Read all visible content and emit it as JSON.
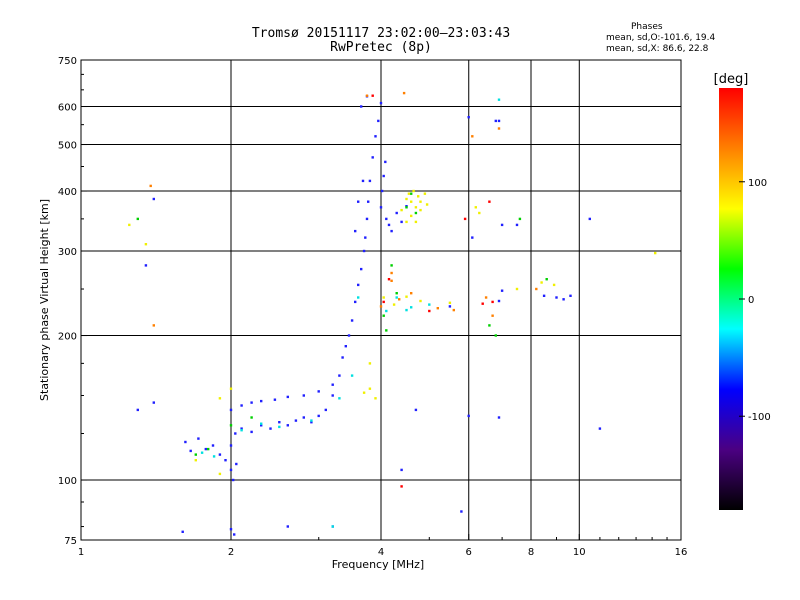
{
  "chart_data": {
    "type": "scatter",
    "title": "Tromsø 20151117 23:02:00–23:03:43",
    "subtitle": "RwPretec (8p)",
    "xlabel": "Frequency [MHz]",
    "ylabel": "Stationary phase Virtual Height [km]",
    "x_scale": "log",
    "y_scale": "log",
    "xlim": [
      1,
      16
    ],
    "ylim": [
      75,
      750
    ],
    "x_ticks": [
      1,
      2,
      4,
      6,
      8,
      10,
      16
    ],
    "x_tick_labels": [
      "1",
      "2",
      "4",
      "6",
      "8",
      "10",
      "16"
    ],
    "x_gridlines": [
      2,
      4,
      6,
      8,
      10
    ],
    "y_ticks": [
      75,
      100,
      200,
      300,
      400,
      500,
      600,
      750
    ],
    "y_tick_labels": [
      "75",
      "100",
      "200",
      "300",
      "400",
      "500",
      "600",
      "750"
    ],
    "y_gridlines": [
      100,
      200,
      300,
      400,
      500,
      600
    ],
    "grid": true,
    "phase_stats": {
      "title": "Phases",
      "o_line": "mean, sd,O:-101.6, 19.4",
      "x_line": "mean, sd,X:  86.6, 22.8"
    },
    "colorbar": {
      "label": "[deg]",
      "range": [
        -180,
        180
      ],
      "ticks": [
        100,
        0,
        -100
      ],
      "tick_labels": [
        "100",
        "0",
        "-100"
      ],
      "colors": [
        "#000000",
        "#4b0082",
        "#0000ff",
        "#00ffff",
        "#00ff00",
        "#ffff00",
        "#ff8000",
        "#ff0000"
      ]
    },
    "series": [
      {
        "phase_color": "#2020ff",
        "points": [
          [
            1.62,
            120
          ],
          [
            1.66,
            115
          ],
          [
            1.72,
            122
          ],
          [
            1.78,
            116
          ],
          [
            1.84,
            118
          ],
          [
            1.9,
            113
          ],
          [
            1.95,
            110
          ],
          [
            2.0,
            118
          ],
          [
            2.04,
            125
          ],
          [
            2.1,
            128
          ],
          [
            2.2,
            126
          ],
          [
            2.3,
            130
          ],
          [
            2.4,
            128
          ],
          [
            2.5,
            132
          ],
          [
            2.6,
            130
          ],
          [
            2.7,
            133
          ],
          [
            2.8,
            135
          ],
          [
            2.9,
            132
          ],
          [
            3.0,
            136
          ],
          [
            3.1,
            140
          ],
          [
            3.2,
            150
          ],
          [
            3.3,
            165
          ],
          [
            3.35,
            180
          ],
          [
            3.4,
            190
          ],
          [
            3.45,
            200
          ],
          [
            3.5,
            215
          ],
          [
            3.55,
            235
          ],
          [
            3.6,
            255
          ],
          [
            3.65,
            275
          ],
          [
            3.7,
            300
          ],
          [
            3.72,
            320
          ],
          [
            3.75,
            350
          ],
          [
            3.77,
            380
          ],
          [
            3.8,
            420
          ],
          [
            3.85,
            470
          ],
          [
            3.9,
            520
          ],
          [
            3.95,
            560
          ],
          [
            3.65,
            600
          ],
          [
            3.75,
            630
          ],
          [
            3.55,
            330
          ],
          [
            3.6,
            380
          ],
          [
            3.68,
            420
          ],
          [
            2.0,
            140
          ],
          [
            2.1,
            143
          ],
          [
            2.2,
            145
          ],
          [
            2.3,
            146
          ],
          [
            2.45,
            147
          ],
          [
            2.6,
            149
          ],
          [
            2.8,
            150
          ],
          [
            3.0,
            153
          ],
          [
            3.2,
            158
          ],
          [
            2.0,
            105
          ],
          [
            2.02,
            100
          ],
          [
            2.05,
            108
          ],
          [
            2.0,
            79
          ],
          [
            2.03,
            77
          ],
          [
            4.0,
            370
          ],
          [
            4.02,
            400
          ],
          [
            4.05,
            430
          ],
          [
            4.08,
            460
          ],
          [
            4.1,
            350
          ],
          [
            4.15,
            340
          ],
          [
            4.2,
            330
          ],
          [
            4.3,
            360
          ],
          [
            4.5,
            372
          ],
          [
            4.4,
            345
          ],
          [
            1.3,
            140
          ],
          [
            1.4,
            145
          ],
          [
            1.4,
            385
          ],
          [
            1.35,
            280
          ],
          [
            1.6,
            78
          ],
          [
            2.6,
            80
          ],
          [
            3.2,
            80
          ],
          [
            5.5,
            230
          ],
          [
            6.9,
            236
          ],
          [
            7.0,
            248
          ],
          [
            7.5,
            340
          ],
          [
            7.0,
            340
          ],
          [
            8.5,
            242
          ],
          [
            9.0,
            240
          ],
          [
            9.3,
            238
          ],
          [
            9.6,
            242
          ],
          [
            11.0,
            128
          ],
          [
            10.5,
            350
          ],
          [
            6.0,
            570
          ],
          [
            6.1,
            320
          ],
          [
            6.0,
            136
          ],
          [
            6.9,
            135
          ],
          [
            6.9,
            560
          ],
          [
            5.8,
            86
          ],
          [
            4.4,
            105
          ],
          [
            4.7,
            140
          ],
          [
            4.0,
            610
          ],
          [
            6.8,
            560
          ]
        ]
      },
      {
        "phase_color": "#00e0e0",
        "points": [
          [
            1.75,
            114
          ],
          [
            2.1,
            127
          ],
          [
            2.5,
            129
          ],
          [
            2.9,
            133
          ],
          [
            3.3,
            148
          ],
          [
            3.6,
            240
          ],
          [
            4.1,
            225
          ],
          [
            4.3,
            240
          ],
          [
            4.6,
            229
          ],
          [
            3.5,
            165
          ],
          [
            2.3,
            131
          ],
          [
            1.85,
            112
          ],
          [
            6.9,
            620
          ],
          [
            3.2,
            80
          ],
          [
            4.5,
            226
          ],
          [
            5.0,
            232
          ]
        ]
      },
      {
        "phase_color": "#00d000",
        "points": [
          [
            1.7,
            113
          ],
          [
            2.0,
            130
          ],
          [
            4.05,
            220
          ],
          [
            4.3,
            245
          ],
          [
            4.5,
            370
          ],
          [
            4.6,
            395
          ],
          [
            4.7,
            360
          ],
          [
            4.1,
            205
          ],
          [
            4.2,
            280
          ],
          [
            6.8,
            200
          ],
          [
            7.6,
            350
          ],
          [
            8.6,
            262
          ],
          [
            1.3,
            350
          ],
          [
            1.8,
            116
          ],
          [
            2.2,
            135
          ],
          [
            6.6,
            210
          ]
        ]
      },
      {
        "phase_color": "#f0f000",
        "points": [
          [
            4.4,
            365
          ],
          [
            4.5,
            385
          ],
          [
            4.55,
            395
          ],
          [
            4.6,
            380
          ],
          [
            4.65,
            400
          ],
          [
            4.7,
            370
          ],
          [
            4.75,
            390
          ],
          [
            4.8,
            365
          ],
          [
            4.5,
            345
          ],
          [
            4.6,
            355
          ],
          [
            4.7,
            345
          ],
          [
            4.8,
            380
          ],
          [
            4.9,
            395
          ],
          [
            4.95,
            375
          ],
          [
            4.05,
            240
          ],
          [
            4.25,
            232
          ],
          [
            4.5,
            241
          ],
          [
            4.8,
            236
          ],
          [
            5.5,
            234
          ],
          [
            3.8,
            155
          ],
          [
            3.9,
            148
          ],
          [
            3.7,
            152
          ],
          [
            1.9,
            148
          ],
          [
            2.0,
            155
          ],
          [
            1.7,
            110
          ],
          [
            1.9,
            103
          ],
          [
            6.2,
            370
          ],
          [
            6.3,
            360
          ],
          [
            7.5,
            250
          ],
          [
            8.4,
            258
          ],
          [
            8.9,
            255
          ],
          [
            14.2,
            297
          ],
          [
            1.25,
            340
          ],
          [
            1.35,
            310
          ],
          [
            3.8,
            175
          ]
        ]
      },
      {
        "phase_color": "#ff8000",
        "points": [
          [
            4.0,
            230
          ],
          [
            4.2,
            260
          ],
          [
            4.35,
            238
          ],
          [
            4.6,
            245
          ],
          [
            6.1,
            520
          ],
          [
            6.9,
            540
          ],
          [
            4.45,
            640
          ],
          [
            3.75,
            632
          ],
          [
            1.38,
            410
          ],
          [
            1.4,
            210
          ],
          [
            6.5,
            240
          ],
          [
            6.7,
            220
          ],
          [
            4.2,
            270
          ],
          [
            8.2,
            250
          ],
          [
            5.2,
            228
          ],
          [
            5.6,
            226
          ]
        ]
      },
      {
        "phase_color": "#ff0000",
        "points": [
          [
            4.05,
            235
          ],
          [
            4.15,
            262
          ],
          [
            4.4,
            97
          ],
          [
            5.9,
            350
          ],
          [
            6.4,
            233
          ],
          [
            6.7,
            235
          ],
          [
            3.85,
            632
          ],
          [
            5.0,
            225
          ],
          [
            6.6,
            380
          ]
        ]
      }
    ]
  }
}
